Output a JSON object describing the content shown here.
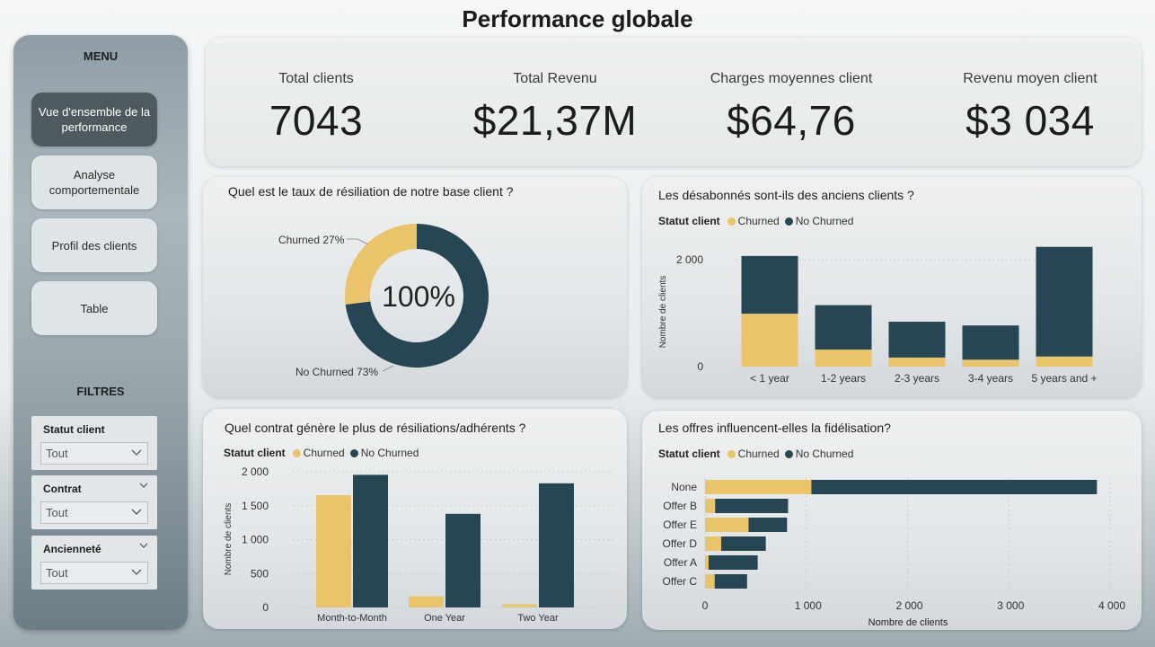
{
  "page": {
    "title": "Performance globale"
  },
  "colors": {
    "churned": "#e9c46a",
    "no_churned": "#264653"
  },
  "sidebar": {
    "menu_title": "MENU",
    "items": [
      {
        "label": "Vue d'ensemble de la performance",
        "active": true
      },
      {
        "label": "Analyse comportementale",
        "active": false
      },
      {
        "label": "Profil des clients",
        "active": false
      },
      {
        "label": "Table",
        "active": false
      }
    ],
    "filters_title": "FILTRES",
    "filters": [
      {
        "label": "Statut client",
        "value": "Tout"
      },
      {
        "label": "Contrat",
        "value": "Tout"
      },
      {
        "label": "Ancienneté",
        "value": "Tout"
      }
    ]
  },
  "kpis": [
    {
      "label": "Total clients",
      "value": "7043"
    },
    {
      "label": "Total Revenu",
      "value": "$21,37M"
    },
    {
      "label": "Charges moyennes client",
      "value": "$64,76"
    },
    {
      "label": "Revenu moyen client",
      "value": "$3 034"
    }
  ],
  "legend": {
    "title": "Statut client",
    "churned": "Churned",
    "no_churned": "No Churned"
  },
  "donut": {
    "title": "Quel est le taux de résiliation de notre base client ?",
    "center_label": "100%",
    "churned_label": "Churned 27%",
    "no_churned_label": "No Churned 73%"
  },
  "tenure_chart": {
    "title": "Les désabonnés sont-ils des anciens clients ?"
  },
  "contract_chart": {
    "title": "Quel contrat génère le plus de résiliations/adhérents ?"
  },
  "offer_chart": {
    "title": "Les offres influencent-elles la fidélisation?"
  },
  "chart_data": [
    {
      "type": "pie",
      "categories": [
        "Churned",
        "No Churned"
      ],
      "values": [
        27,
        73
      ],
      "title": "Quel est le taux de résiliation de notre base client ?"
    },
    {
      "type": "bar",
      "stacked": true,
      "title": "Les désabonnés sont-ils des anciens clients ?",
      "categories": [
        "< 1 year",
        "1-2 years",
        "2-3 years",
        "3-4 years",
        "5 years and +"
      ],
      "series": [
        {
          "name": "Churned",
          "values": [
            990,
            320,
            170,
            130,
            190
          ]
        },
        {
          "name": "No Churned",
          "values": [
            1080,
            830,
            670,
            640,
            2050
          ]
        }
      ],
      "ylabel": "Nombre de clients",
      "yticks": [
        0,
        2000
      ],
      "ytick_labels": [
        "0",
        "2 000"
      ],
      "ylim": [
        0,
        2300
      ],
      "legend_position": "top-left"
    },
    {
      "type": "bar",
      "stacked": false,
      "title": "Quel contrat génère le plus de résiliations/adhérents ?",
      "categories": [
        "Month-to-Month",
        "One Year",
        "Two Year"
      ],
      "series": [
        {
          "name": "Churned",
          "values": [
            1655,
            166,
            48
          ]
        },
        {
          "name": "No Churned",
          "values": [
            1955,
            1380,
            1830
          ]
        }
      ],
      "ylabel": "Nombre de clients",
      "yticks": [
        0,
        500,
        1000,
        1500,
        2000
      ],
      "ytick_labels": [
        "0",
        "500",
        "1 000",
        "1 500",
        "2 000"
      ],
      "ylim": [
        0,
        2000
      ],
      "legend_position": "top-left"
    },
    {
      "type": "bar",
      "orientation": "horizontal",
      "stacked": true,
      "title": "Les offres influencent-elles la fidélisation?",
      "categories": [
        "None",
        "Offer B",
        "Offer E",
        "Offer D",
        "Offer A",
        "Offer C"
      ],
      "series": [
        {
          "name": "Churned",
          "values": [
            1050,
            100,
            430,
            160,
            35,
            95
          ]
        },
        {
          "name": "No Churned",
          "values": [
            2820,
            720,
            380,
            440,
            485,
            320
          ]
        }
      ],
      "xlabel": "Nombre de clients",
      "xticks": [
        0,
        1000,
        2000,
        3000,
        4000
      ],
      "xtick_labels": [
        "0",
        "1 000",
        "2 000",
        "3 000",
        "4 000"
      ],
      "xlim": [
        0,
        4000
      ],
      "legend_position": "top-left"
    }
  ]
}
